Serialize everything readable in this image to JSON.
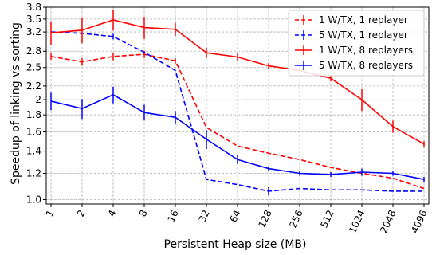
{
  "chart_data": {
    "type": "line",
    "title": "",
    "xlabel": "Persistent Heap size (MB)",
    "ylabel": "Speedup of linking vs sorting",
    "x_scale": "log2",
    "categories": [
      "1",
      "2",
      "4",
      "8",
      "16",
      "32",
      "64",
      "128",
      "256",
      "512",
      "1024",
      "2048",
      "4096"
    ],
    "x": [
      1,
      2,
      4,
      8,
      16,
      32,
      64,
      128,
      256,
      512,
      1024,
      2048,
      4096
    ],
    "y_scale": "log",
    "ylim": [
      0.97,
      3.8
    ],
    "yticks": [
      1.0,
      1.2,
      1.4,
      1.6,
      1.8,
      2.0,
      2.2,
      2.5,
      2.8,
      3.2,
      3.5,
      3.8
    ],
    "ytick_labels": [
      "1.0",
      "1.2",
      "1.4",
      "1.6",
      "1.8",
      "2",
      "2.2",
      "2.5",
      "2.8",
      "3.2",
      "3.5",
      "3.8"
    ],
    "grid": true,
    "legend_position": "top-right",
    "series": [
      {
        "name": "1 W/TX, 1 replayer",
        "color": "#ff0000",
        "style": "dashed",
        "values": [
          2.7,
          2.6,
          2.7,
          2.74,
          2.62,
          1.65,
          1.45,
          1.38,
          1.32,
          1.25,
          1.2,
          1.16,
          1.08
        ],
        "errors": [
          0.06,
          0.07,
          0.07,
          0.07,
          0.05,
          0,
          0,
          0,
          0,
          0,
          0,
          0,
          0
        ]
      },
      {
        "name": "5 W/TX, 1 replayer",
        "color": "#0000ff",
        "style": "dashed",
        "values": [
          3.2,
          3.17,
          3.1,
          2.78,
          2.45,
          1.15,
          1.11,
          1.06,
          1.08,
          1.07,
          1.07,
          1.06,
          1.06
        ],
        "errors": [
          0,
          0,
          0.06,
          0,
          0,
          0,
          0,
          0.03,
          0,
          0,
          0,
          0,
          0
        ]
      },
      {
        "name": "1 W/TX, 8 replayers",
        "color": "#ff0000",
        "style": "solid",
        "values": [
          3.18,
          3.24,
          3.48,
          3.3,
          3.26,
          2.77,
          2.69,
          2.53,
          2.45,
          2.32,
          2.0,
          1.66,
          1.47
        ],
        "errors": [
          0.25,
          0.28,
          0.25,
          0.25,
          0.15,
          0.1,
          0.08,
          0.05,
          0.05,
          0.05,
          0.15,
          0.07,
          0.03
        ]
      },
      {
        "name": "5 W/TX, 8 replayers",
        "color": "#0000ff",
        "style": "solid",
        "values": [
          1.98,
          1.88,
          2.07,
          1.83,
          1.77,
          1.52,
          1.32,
          1.24,
          1.2,
          1.19,
          1.21,
          1.2,
          1.15
        ],
        "errors": [
          0.12,
          0.13,
          0.12,
          0.1,
          0.08,
          0.1,
          0.04,
          0.02,
          0.02,
          0.02,
          0.03,
          0.02,
          0.02
        ]
      }
    ]
  }
}
